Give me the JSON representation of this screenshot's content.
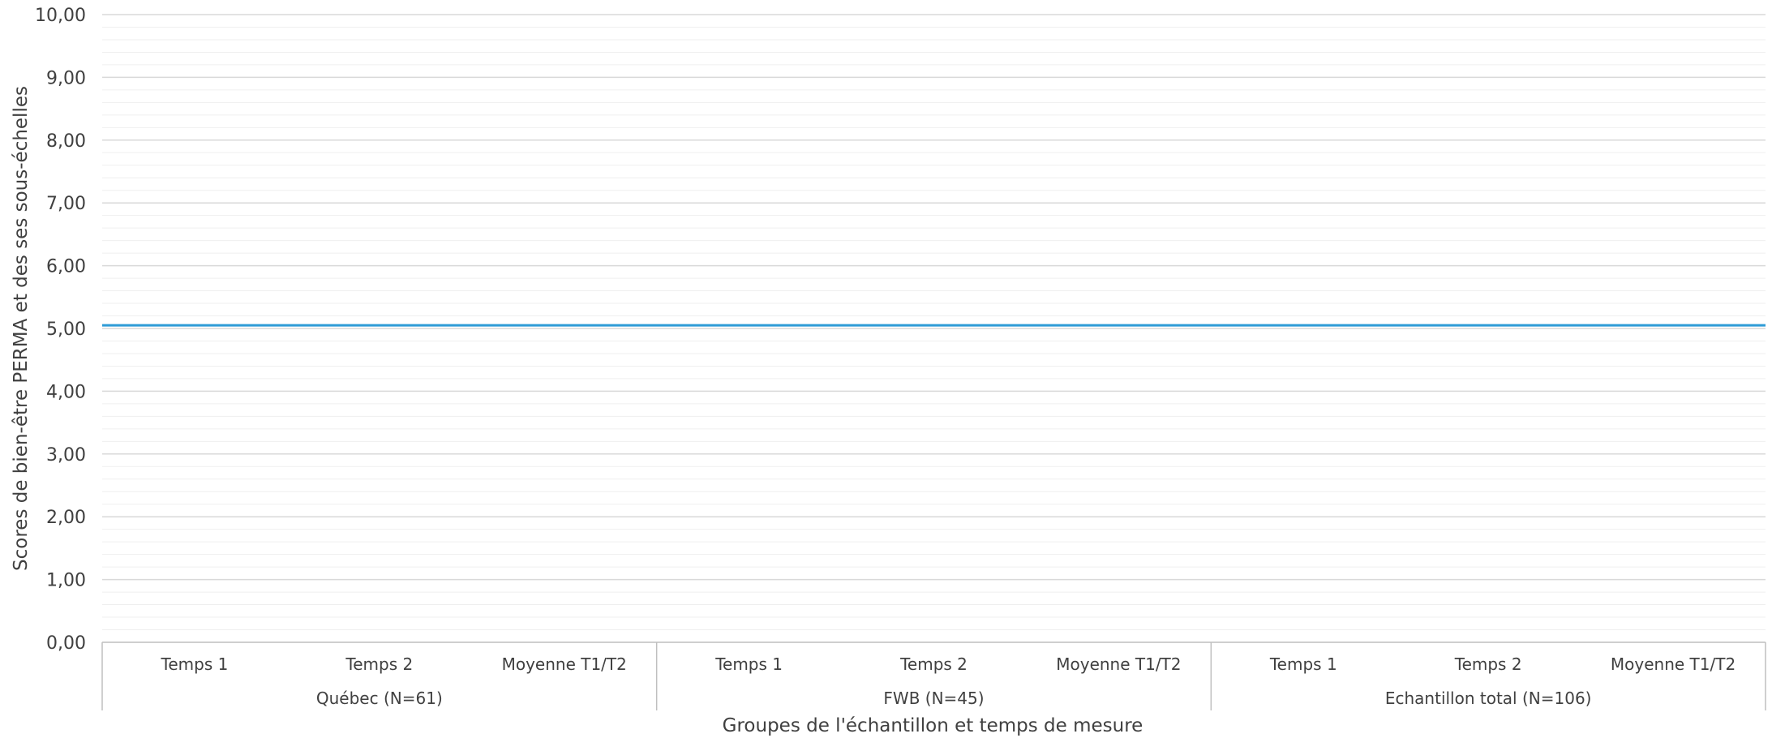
{
  "chart_data": {
    "type": "line",
    "xlabel": "Groupes de l'échantillon et temps de mesure",
    "ylabel": "Scores de bien-être PERMA et des ses sous-échelles",
    "ylim": [
      0,
      10
    ],
    "yticks": [
      "0,00",
      "1,00",
      "2,00",
      "3,00",
      "4,00",
      "5,00",
      "6,00",
      "7,00",
      "8,00",
      "9,00",
      "10,00"
    ],
    "groups": [
      {
        "label": "Québec (N=61)",
        "categories": [
          "Temps 1",
          "Temps 2",
          "Moyenne T1/T2"
        ]
      },
      {
        "label": "FWB (N=45)",
        "categories": [
          "Temps 1",
          "Temps 2",
          "Moyenne T1/T2"
        ]
      },
      {
        "label": "Echantillon total (N=106)",
        "categories": [
          "Temps 1",
          "Temps 2",
          "Moyenne T1/T2"
        ]
      }
    ],
    "reference_line": {
      "value": 5.05,
      "color": "#2e9bd6"
    },
    "grid": {
      "major": true,
      "minor": true
    },
    "colors": {
      "major_grid": "#d9d9d9",
      "minor_grid": "#efefef",
      "axis": "#bfbfbf"
    }
  }
}
